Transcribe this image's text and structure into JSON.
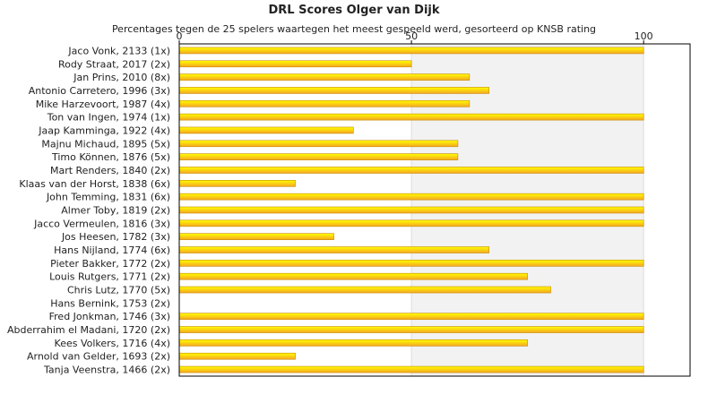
{
  "chart_data": {
    "type": "bar",
    "orientation": "horizontal",
    "title": "DRL Scores Olger van Dijk",
    "subtitle": "Percentages tegen de 25 spelers waartegen het meest gespeeld werd, gesorteerd op KNSB rating",
    "xlim": [
      0,
      110
    ],
    "xticks": [
      "0",
      "50",
      "100"
    ],
    "grid": true,
    "legend": "none",
    "colors": {
      "bar_top": "#ffff00",
      "bar_bottom": "#f5a623",
      "bar_stroke": "#c88a00",
      "band": "#f2f2f2",
      "axis": "#000000"
    },
    "categories": [
      "Jaco Vonk, 2133 (1x)",
      "Rody Straat, 2017 (2x)",
      "Jan Prins, 2010 (8x)",
      "Antonio Carretero, 1996 (3x)",
      "Mike Harzevoort, 1987 (4x)",
      "Ton van Ingen, 1974 (1x)",
      "Jaap Kamminga, 1922 (4x)",
      "Majnu Michaud, 1895 (5x)",
      "Timo Können, 1876 (5x)",
      "Mart Renders, 1840 (2x)",
      "Klaas van der Horst, 1838 (6x)",
      "John Temming, 1831 (6x)",
      "Almer Toby, 1819 (2x)",
      "Jacco Vermeulen, 1816 (3x)",
      "Jos Heesen, 1782 (3x)",
      "Hans Nijland, 1774 (6x)",
      "Pieter Bakker, 1772 (2x)",
      "Louis Rutgers, 1771 (2x)",
      "Chris Lutz, 1770 (5x)",
      "Hans Bernink, 1753 (2x)",
      "Fred Jonkman, 1746 (3x)",
      "Abderrahim el Madani, 1720 (2x)",
      "Kees Volkers, 1716 (4x)",
      "Arnold van Gelder, 1693 (2x)",
      "Tanja Veenstra, 1466 (2x)"
    ],
    "values": [
      100,
      50,
      62.5,
      66.7,
      62.5,
      100,
      37.5,
      60,
      60,
      100,
      25,
      100,
      100,
      100,
      33.3,
      66.7,
      100,
      75,
      80,
      0,
      100,
      100,
      75,
      25,
      100
    ]
  }
}
